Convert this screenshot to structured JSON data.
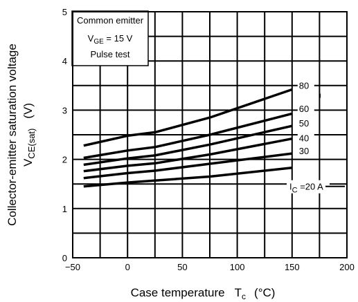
{
  "chart_data": {
    "type": "line",
    "title": "",
    "xlabel": {
      "text": "Case temperature",
      "symbol": "T",
      "symbol_sub": "c",
      "unit": "(°C)"
    },
    "ylabel": {
      "line1": "Collector-emitter saturation voltage",
      "symbol": "V",
      "symbol_sub": "CE(sat)",
      "unit": "(V)"
    },
    "xlim": [
      -50,
      200
    ],
    "ylim": [
      0,
      5
    ],
    "xticks": [
      -50,
      0,
      50,
      100,
      150,
      200
    ],
    "yticks": [
      0,
      1,
      2,
      3,
      4,
      5
    ],
    "xtick_labels": [
      "−50",
      "0",
      "50",
      "100",
      "150",
      "200"
    ],
    "ytick_labels": [
      "0",
      "1",
      "2",
      "3",
      "4",
      "5"
    ],
    "grid": true,
    "annotation": {
      "line1": "Common emitter",
      "line2_main": "V",
      "line2_sub": "GE",
      "line2_rest": " = 15 V",
      "line3": "Pulse test"
    },
    "series": [
      {
        "label": "80",
        "x": [
          -40,
          0,
          25,
          75,
          150
        ],
        "y": [
          2.28,
          2.48,
          2.55,
          2.85,
          3.42
        ]
      },
      {
        "label": "60",
        "x": [
          -40,
          0,
          25,
          75,
          150
        ],
        "y": [
          2.03,
          2.18,
          2.25,
          2.5,
          2.93
        ]
      },
      {
        "label": "50",
        "x": [
          -40,
          0,
          25,
          75,
          150
        ],
        "y": [
          1.89,
          2.02,
          2.08,
          2.3,
          2.68
        ]
      },
      {
        "label": "40",
        "x": [
          -40,
          0,
          25,
          75,
          150
        ],
        "y": [
          1.76,
          1.87,
          1.92,
          2.1,
          2.42
        ]
      },
      {
        "label": "30",
        "x": [
          -40,
          0,
          25,
          75,
          150
        ],
        "y": [
          1.62,
          1.72,
          1.77,
          1.91,
          2.12
        ]
      },
      {
        "label_prefix": "I",
        "label_sub": "C",
        "label": " =20 A",
        "x": [
          -40,
          0,
          25,
          75,
          150
        ],
        "y": [
          1.45,
          1.53,
          1.57,
          1.65,
          1.83
        ]
      }
    ]
  }
}
